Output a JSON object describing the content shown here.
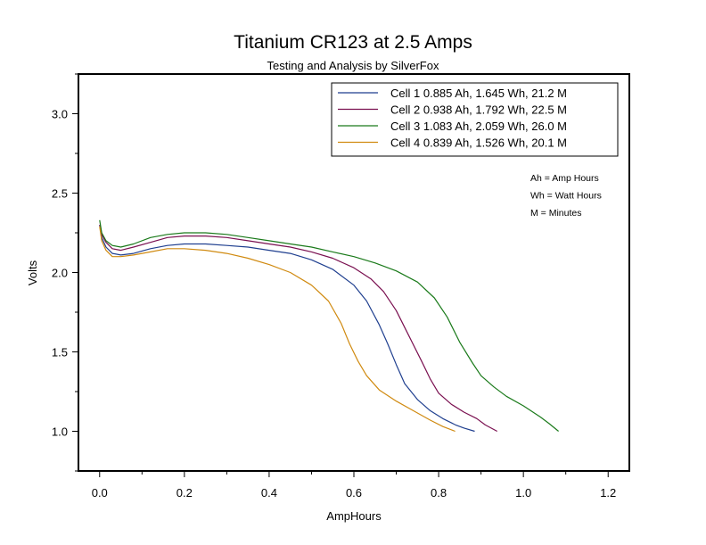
{
  "chart_data": {
    "type": "line",
    "title": "Titanium CR123 at 2.5 Amps",
    "subtitle": "Testing and Analysis by SilverFox",
    "xlabel": "AmpHours",
    "ylabel": "Volts",
    "xlim": [
      -0.05,
      1.25
    ],
    "ylim": [
      0.75,
      3.25
    ],
    "xticks": [
      0.0,
      0.2,
      0.4,
      0.6,
      0.8,
      1.0,
      1.2
    ],
    "xtick_labels": [
      "0.0",
      "0.2",
      "0.4",
      "0.6",
      "0.8",
      "1.0",
      "1.2"
    ],
    "yticks": [
      1.0,
      1.5,
      2.0,
      2.5,
      3.0
    ],
    "ytick_labels": [
      "1.0",
      "1.5",
      "2.0",
      "2.5",
      "3.0"
    ],
    "grid": false,
    "legend_position": "top-right",
    "series": [
      {
        "name": "Cell 1  0.885 Ah, 1.645 Wh, 21.2 M",
        "color": "#1f3f8f",
        "points": [
          [
            0.0,
            2.3
          ],
          [
            0.005,
            2.22
          ],
          [
            0.015,
            2.16
          ],
          [
            0.03,
            2.12
          ],
          [
            0.05,
            2.11
          ],
          [
            0.08,
            2.12
          ],
          [
            0.12,
            2.15
          ],
          [
            0.16,
            2.17
          ],
          [
            0.2,
            2.18
          ],
          [
            0.25,
            2.18
          ],
          [
            0.3,
            2.17
          ],
          [
            0.35,
            2.16
          ],
          [
            0.4,
            2.14
          ],
          [
            0.45,
            2.12
          ],
          [
            0.5,
            2.08
          ],
          [
            0.55,
            2.02
          ],
          [
            0.6,
            1.92
          ],
          [
            0.63,
            1.82
          ],
          [
            0.66,
            1.67
          ],
          [
            0.68,
            1.55
          ],
          [
            0.7,
            1.42
          ],
          [
            0.72,
            1.3
          ],
          [
            0.75,
            1.2
          ],
          [
            0.78,
            1.13
          ],
          [
            0.81,
            1.08
          ],
          [
            0.84,
            1.04
          ],
          [
            0.86,
            1.02
          ],
          [
            0.885,
            1.0
          ]
        ]
      },
      {
        "name": "Cell 2  0.938 Ah, 1.792 Wh, 22.5 M",
        "color": "#7a1050",
        "points": [
          [
            0.0,
            2.3
          ],
          [
            0.005,
            2.24
          ],
          [
            0.015,
            2.19
          ],
          [
            0.03,
            2.15
          ],
          [
            0.05,
            2.14
          ],
          [
            0.08,
            2.16
          ],
          [
            0.12,
            2.19
          ],
          [
            0.16,
            2.22
          ],
          [
            0.2,
            2.23
          ],
          [
            0.25,
            2.23
          ],
          [
            0.3,
            2.22
          ],
          [
            0.35,
            2.2
          ],
          [
            0.4,
            2.18
          ],
          [
            0.45,
            2.16
          ],
          [
            0.5,
            2.13
          ],
          [
            0.55,
            2.09
          ],
          [
            0.6,
            2.03
          ],
          [
            0.64,
            1.96
          ],
          [
            0.67,
            1.88
          ],
          [
            0.7,
            1.76
          ],
          [
            0.73,
            1.6
          ],
          [
            0.76,
            1.44
          ],
          [
            0.78,
            1.33
          ],
          [
            0.8,
            1.24
          ],
          [
            0.83,
            1.17
          ],
          [
            0.86,
            1.12
          ],
          [
            0.89,
            1.08
          ],
          [
            0.91,
            1.04
          ],
          [
            0.938,
            1.0
          ]
        ]
      },
      {
        "name": "Cell 3  1.083 Ah, 2.059 Wh, 26.0 M",
        "color": "#1a7a1a",
        "points": [
          [
            0.0,
            2.33
          ],
          [
            0.005,
            2.25
          ],
          [
            0.015,
            2.2
          ],
          [
            0.03,
            2.17
          ],
          [
            0.05,
            2.16
          ],
          [
            0.08,
            2.18
          ],
          [
            0.12,
            2.22
          ],
          [
            0.16,
            2.24
          ],
          [
            0.2,
            2.25
          ],
          [
            0.25,
            2.25
          ],
          [
            0.3,
            2.24
          ],
          [
            0.35,
            2.22
          ],
          [
            0.4,
            2.2
          ],
          [
            0.45,
            2.18
          ],
          [
            0.5,
            2.16
          ],
          [
            0.55,
            2.13
          ],
          [
            0.6,
            2.1
          ],
          [
            0.65,
            2.06
          ],
          [
            0.7,
            2.01
          ],
          [
            0.75,
            1.94
          ],
          [
            0.79,
            1.84
          ],
          [
            0.82,
            1.72
          ],
          [
            0.85,
            1.56
          ],
          [
            0.88,
            1.43
          ],
          [
            0.9,
            1.35
          ],
          [
            0.93,
            1.28
          ],
          [
            0.96,
            1.22
          ],
          [
            1.0,
            1.16
          ],
          [
            1.04,
            1.09
          ],
          [
            1.06,
            1.05
          ],
          [
            1.083,
            1.0
          ]
        ]
      },
      {
        "name": "Cell 4  0.839 Ah, 1.526 Wh, 20.1 M",
        "color": "#d08a10",
        "points": [
          [
            0.0,
            2.29
          ],
          [
            0.005,
            2.2
          ],
          [
            0.015,
            2.14
          ],
          [
            0.03,
            2.1
          ],
          [
            0.05,
            2.1
          ],
          [
            0.08,
            2.11
          ],
          [
            0.12,
            2.13
          ],
          [
            0.16,
            2.15
          ],
          [
            0.2,
            2.15
          ],
          [
            0.25,
            2.14
          ],
          [
            0.3,
            2.12
          ],
          [
            0.35,
            2.09
          ],
          [
            0.4,
            2.05
          ],
          [
            0.45,
            2.0
          ],
          [
            0.5,
            1.92
          ],
          [
            0.54,
            1.82
          ],
          [
            0.57,
            1.68
          ],
          [
            0.59,
            1.55
          ],
          [
            0.61,
            1.44
          ],
          [
            0.63,
            1.35
          ],
          [
            0.66,
            1.26
          ],
          [
            0.7,
            1.19
          ],
          [
            0.74,
            1.13
          ],
          [
            0.78,
            1.07
          ],
          [
            0.81,
            1.03
          ],
          [
            0.839,
            1.0
          ]
        ]
      }
    ],
    "notes": [
      "Ah = Amp Hours",
      "Wh = Watt Hours",
      "M = Minutes"
    ]
  }
}
